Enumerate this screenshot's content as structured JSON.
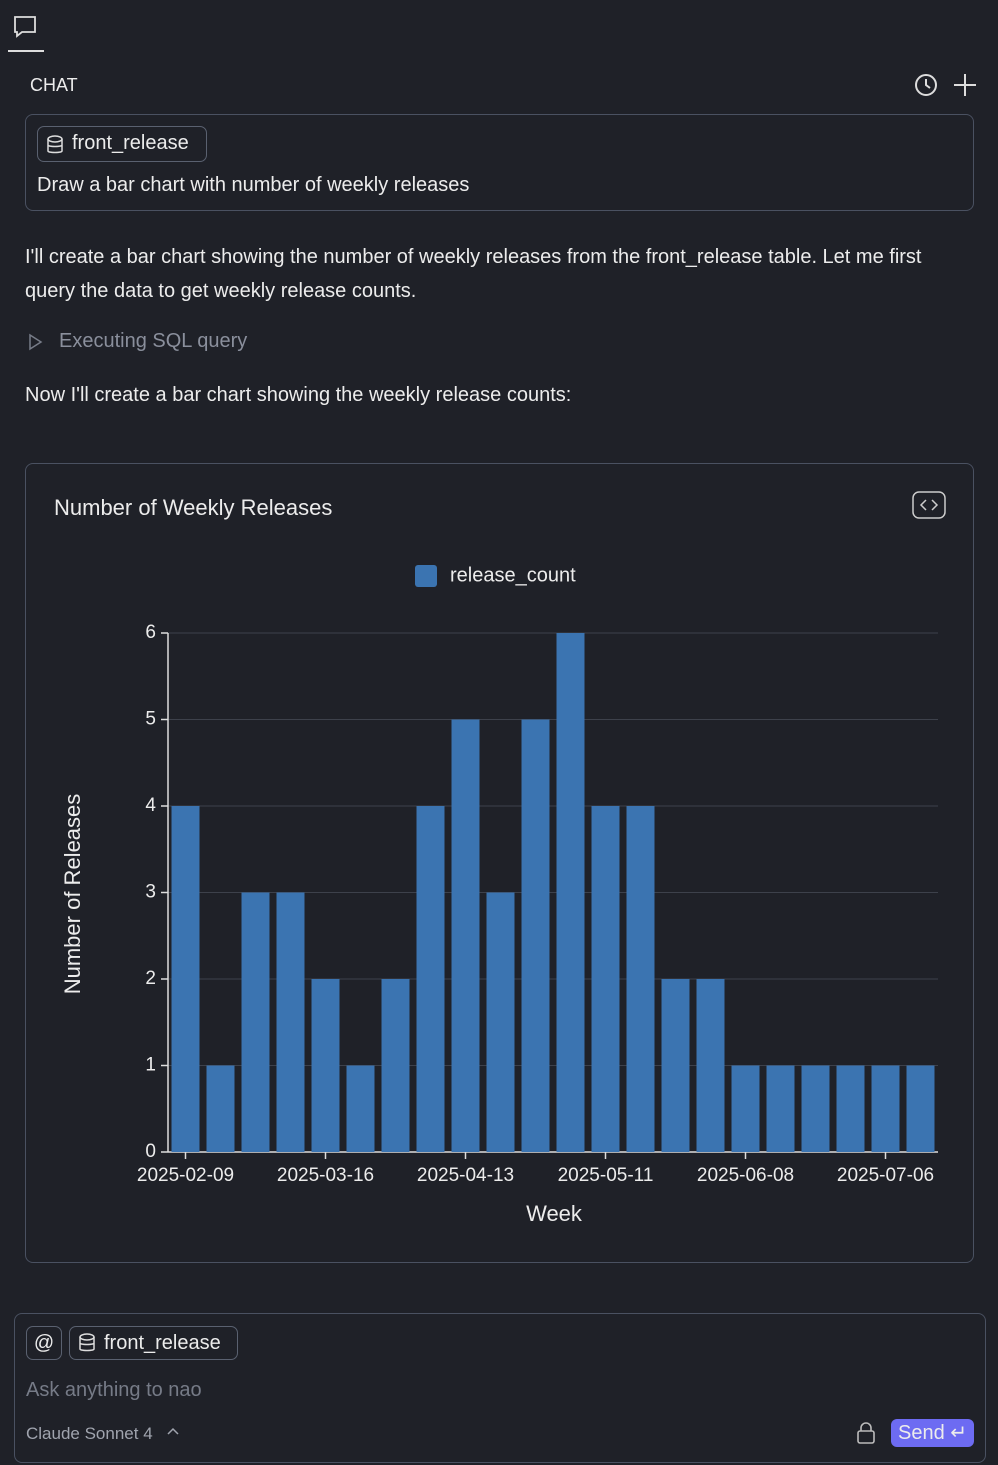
{
  "header": {
    "title": "CHAT"
  },
  "user_message": {
    "context": "front_release",
    "text": "Draw a bar chart with number of weekly releases"
  },
  "assistant": {
    "intro": "I'll create a bar chart showing the number of weekly releases from the front_release table. Let me first query the data to get weekly release counts.",
    "tool_step": "Executing SQL query",
    "followup": "Now I'll create a bar chart showing the weekly release counts:"
  },
  "chart_data": {
    "type": "bar",
    "title": "Number of Weekly Releases",
    "x_label": "Week",
    "y_label": "Number of Releases",
    "categories": [
      "2025-02-09",
      null,
      null,
      null,
      "2025-03-16",
      null,
      null,
      null,
      "2025-04-13",
      null,
      null,
      null,
      "2025-05-11",
      null,
      null,
      null,
      "2025-06-08",
      null,
      null,
      null,
      "2025-07-06",
      null
    ],
    "series": [
      {
        "name": "release_count",
        "color": "#3b74b1",
        "values": [
          4,
          1,
          3,
          3,
          2,
          1,
          2,
          4,
          5,
          3,
          5,
          6,
          4,
          4,
          2,
          2,
          1,
          1,
          1,
          1,
          1,
          1
        ]
      }
    ],
    "ylim": [
      0,
      6
    ],
    "yticks": [
      0,
      1,
      2,
      3,
      4,
      5,
      6
    ],
    "grid": true
  },
  "composer": {
    "mention": "@",
    "context": "front_release",
    "placeholder": "Ask anything to nao",
    "model": "Claude Sonnet 4",
    "send": "Send"
  }
}
